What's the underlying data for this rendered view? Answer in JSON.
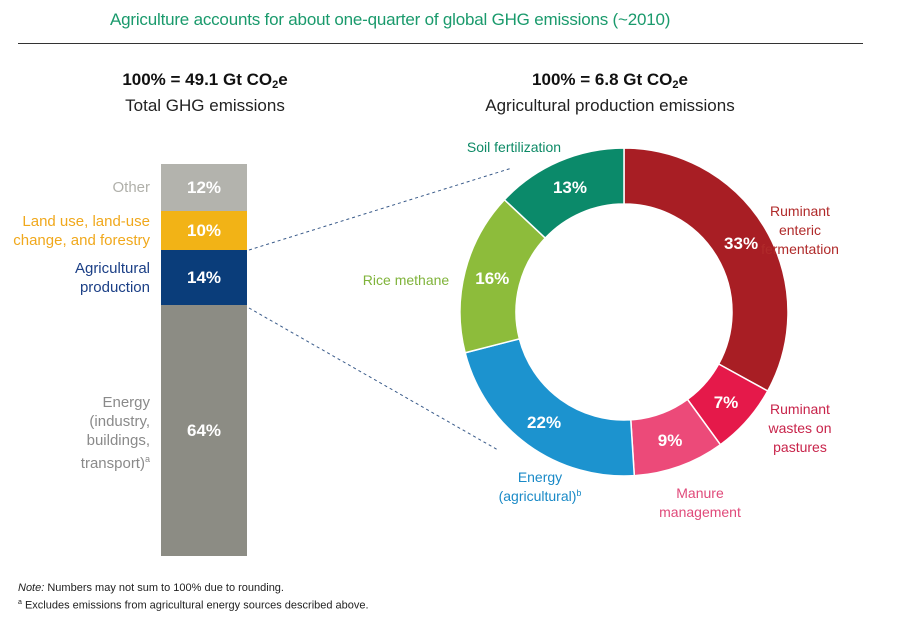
{
  "title": "Agriculture accounts for about one-quarter of global GHG emissions (~2010)",
  "left_panel": {
    "header_main": "100% = 49.1 Gt CO",
    "header_sub2": "2",
    "header_tail": "e",
    "header_sub": "Total GHG emissions"
  },
  "right_panel": {
    "header_main": "100% = 6.8 Gt CO",
    "header_sub2": "2",
    "header_tail": "e",
    "header_sub": "Agricultural production emissions"
  },
  "chart_data": [
    {
      "type": "bar",
      "stacked": true,
      "title": "Total GHG emissions",
      "total": "49.1 Gt CO2e",
      "segments": [
        {
          "name": "Other",
          "value": 12,
          "label": "12%",
          "color": "#b3b3ad",
          "text_color": "#b0b0aa"
        },
        {
          "name": "Land use, land-use change, and forestry",
          "label_lines": [
            "Land use, land-use",
            "change, and forestry"
          ],
          "value": 10,
          "label": "10%",
          "color": "#f2b316",
          "text_color": "#f0a81c"
        },
        {
          "name": "Agricultural production",
          "label_lines": [
            "Agricultural",
            "production"
          ],
          "value": 14,
          "label": "14%",
          "color": "#0a3d7a",
          "text_color": "#1b3f86"
        },
        {
          "name": "Energy (industry, buildings, transport)",
          "label_lines": [
            "Energy",
            "(industry,",
            "buildings,",
            "transport)"
          ],
          "footnote_mark": "a",
          "value": 64,
          "label": "64%",
          "color": "#8c8c84",
          "text_color": "#8a8a8a"
        }
      ]
    },
    {
      "type": "pie",
      "donut": true,
      "title": "Agricultural production emissions",
      "total": "6.8 Gt CO2e",
      "slices": [
        {
          "name": "Ruminant enteric fermentation",
          "label_lines": [
            "Ruminant",
            "enteric",
            "fermentation"
          ],
          "value": 33,
          "label": "33%",
          "color": "#a81e24",
          "text_color": "#b02a2a"
        },
        {
          "name": "Ruminant wastes on pastures",
          "label_lines": [
            "Ruminant",
            "wastes on",
            "pastures"
          ],
          "value": 7,
          "label": "7%",
          "color": "#e5194a",
          "text_color": "#c8234a"
        },
        {
          "name": "Manure management",
          "label_lines": [
            "Manure",
            "management"
          ],
          "value": 9,
          "label": "9%",
          "color": "#ec4a79",
          "text_color": "#e04a7a"
        },
        {
          "name": "Energy (agricultural)",
          "label_lines": [
            "Energy",
            "(agricultural)"
          ],
          "footnote_mark": "b",
          "value": 22,
          "label": "22%",
          "color": "#1c93cf",
          "text_color": "#1a8ac7"
        },
        {
          "name": "Rice methane",
          "label_lines": [
            "Rice methane"
          ],
          "value": 16,
          "label": "16%",
          "color": "#8dbc3b",
          "text_color": "#7fb33a"
        },
        {
          "name": "Soil fertilization",
          "label_lines": [
            "Soil fertilization"
          ],
          "value": 13,
          "label": "13%",
          "color": "#0b8a6a",
          "text_color": "#0d8a66"
        }
      ]
    }
  ],
  "notes": {
    "note_prefix": "Note:",
    "note_text": " Numbers may not sum to 100% due to rounding.",
    "footnote_a_mark": "a",
    "footnote_a_text": " Excludes emissions from agricultural energy sources described above."
  }
}
